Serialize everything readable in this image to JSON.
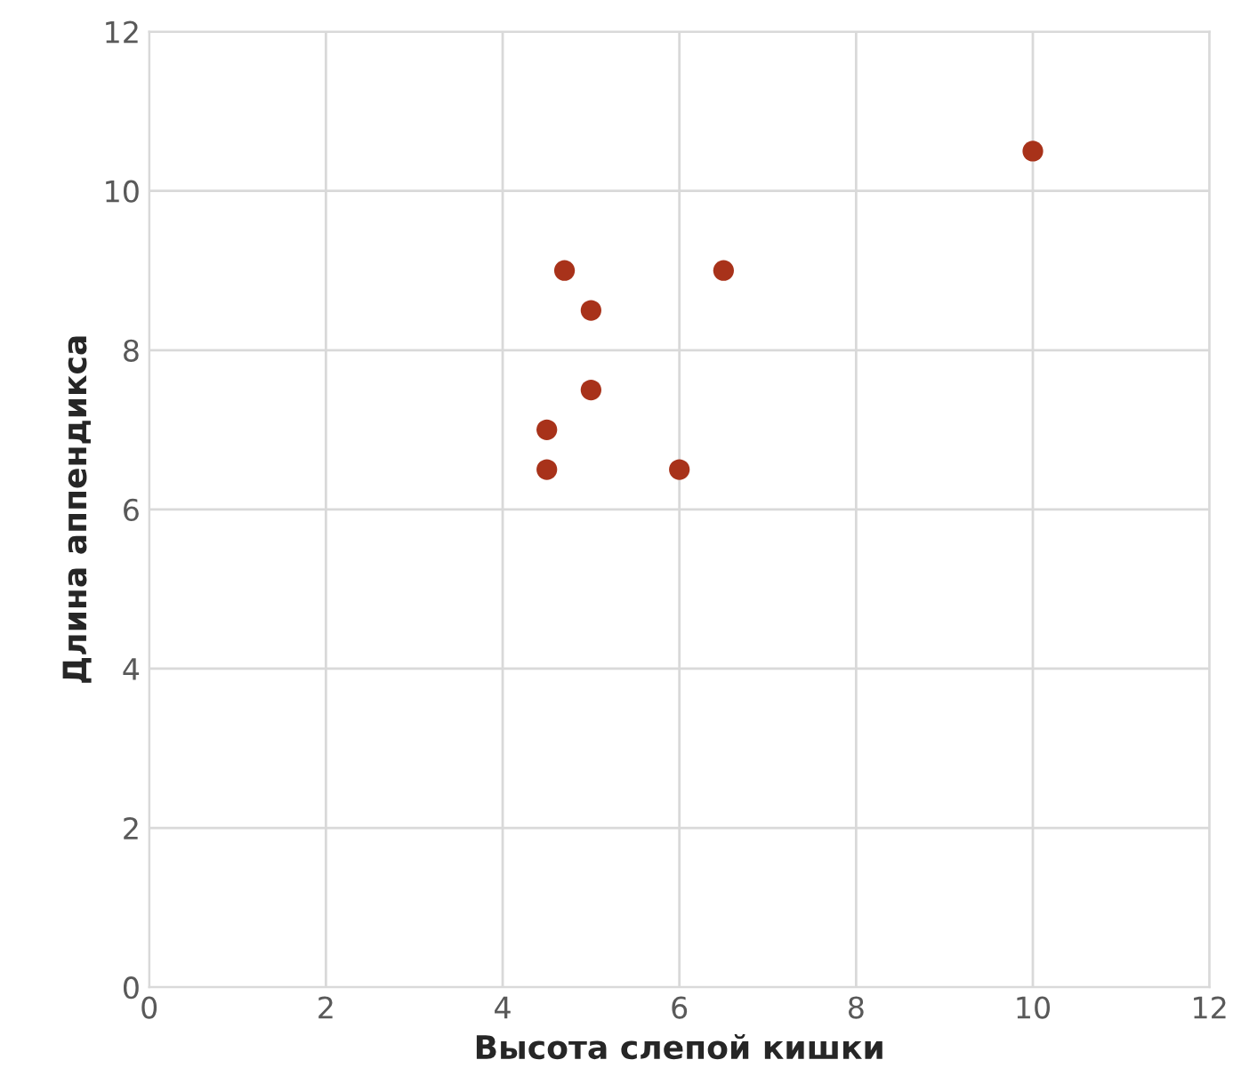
{
  "chart_data": {
    "type": "scatter",
    "xlabel": "Высота слепой кишки",
    "ylabel": "Длина аппендикса",
    "x": [
      4.5,
      4.5,
      4.7,
      5,
      5,
      6,
      6.5,
      10
    ],
    "values": [
      6.5,
      7,
      9,
      8.5,
      7.5,
      6.5,
      9,
      10.5
    ],
    "color": "#a8321a",
    "marker": "circle",
    "xlim": [
      0,
      12
    ],
    "ylim": [
      0,
      12
    ],
    "xticks": [
      0,
      2,
      4,
      6,
      8,
      10,
      12
    ],
    "yticks": [
      0,
      2,
      4,
      6,
      8,
      10,
      12
    ],
    "grid": true
  }
}
